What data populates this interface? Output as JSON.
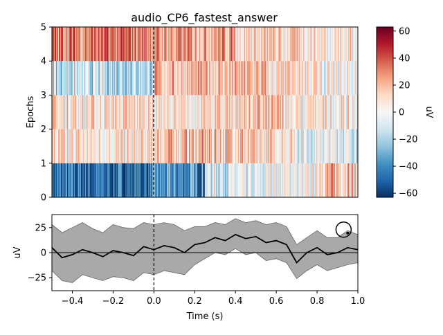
{
  "chart_data": [
    {
      "type": "heatmap",
      "title": "audio_CP6_fastest_answer",
      "xlabel": "",
      "ylabel": "Epochs",
      "xlim": [
        -0.5,
        1.0
      ],
      "ylim": [
        0,
        5
      ],
      "y_ticks": [
        "0",
        "1",
        "2",
        "3",
        "4",
        "5"
      ],
      "colormap": "RdBu_r",
      "colorbar": {
        "label": "uV",
        "range": [
          -63,
          63
        ],
        "ticks": [
          "60",
          "40",
          "20",
          "0",
          "−20",
          "−40",
          "−60"
        ],
        "tick_values": [
          60,
          40,
          20,
          0,
          -20,
          -40,
          -60
        ]
      },
      "onset_marker_x": 0.0,
      "epochs": [
        {
          "row": 1,
          "baseline_mean_uV": -45,
          "segments": [
            {
              "x": [
                -0.5,
                0.0
              ],
              "mean_uV": -48
            },
            {
              "x": [
                0.0,
                0.25
              ],
              "mean_uV": -40
            },
            {
              "x": [
                0.25,
                0.55
              ],
              "mean_uV": -10
            },
            {
              "x": [
                0.55,
                0.8
              ],
              "mean_uV": 0
            },
            {
              "x": [
                0.8,
                1.0
              ],
              "mean_uV": 20
            }
          ]
        },
        {
          "row": 2,
          "baseline_mean_uV": 8,
          "segments": [
            {
              "x": [
                -0.5,
                0.0
              ],
              "mean_uV": 8
            },
            {
              "x": [
                0.0,
                0.45
              ],
              "mean_uV": 18
            },
            {
              "x": [
                0.45,
                0.7
              ],
              "mean_uV": 10
            },
            {
              "x": [
                0.7,
                1.0
              ],
              "mean_uV": -5
            }
          ]
        },
        {
          "row": 3,
          "baseline_mean_uV": 10,
          "segments": [
            {
              "x": [
                -0.5,
                0.0
              ],
              "mean_uV": 10
            },
            {
              "x": [
                0.0,
                0.3
              ],
              "mean_uV": 5
            },
            {
              "x": [
                0.3,
                0.65
              ],
              "mean_uV": 15
            },
            {
              "x": [
                0.65,
                1.0
              ],
              "mean_uV": 5
            }
          ]
        },
        {
          "row": 4,
          "baseline_mean_uV": -15,
          "segments": [
            {
              "x": [
                -0.5,
                0.0
              ],
              "mean_uV": -15
            },
            {
              "x": [
                0.0,
                0.55
              ],
              "mean_uV": 18
            },
            {
              "x": [
                0.55,
                0.8
              ],
              "mean_uV": 8
            },
            {
              "x": [
                0.8,
                1.0
              ],
              "mean_uV": 0
            }
          ]
        },
        {
          "row": 5,
          "baseline_mean_uV": 30,
          "segments": [
            {
              "x": [
                -0.5,
                0.0
              ],
              "mean_uV": 32
            },
            {
              "x": [
                0.0,
                0.4
              ],
              "mean_uV": 25
            },
            {
              "x": [
                0.4,
                0.75
              ],
              "mean_uV": 12
            },
            {
              "x": [
                0.75,
                1.0
              ],
              "mean_uV": 8
            }
          ]
        }
      ]
    },
    {
      "type": "line",
      "title": "",
      "xlabel": "Time (s)",
      "ylabel": "uV",
      "xlim": [
        -0.5,
        1.0
      ],
      "ylim": [
        -38,
        38
      ],
      "x_ticks": [
        "−0.4",
        "−0.2",
        "0.0",
        "0.2",
        "0.4",
        "0.6",
        "0.8",
        "1.0"
      ],
      "x_tick_values": [
        -0.4,
        -0.2,
        0.0,
        0.2,
        0.4,
        0.6,
        0.8,
        1.0
      ],
      "y_ticks": [
        "25",
        "0",
        "−25"
      ],
      "y_tick_values": [
        25,
        0,
        -25
      ],
      "zero_line": true,
      "onset_marker_x": 0.0,
      "series": [
        {
          "line_color": "#000000",
          "band_color": "#a9a9a9",
          "x": [
            -0.5,
            -0.45,
            -0.4,
            -0.35,
            -0.3,
            -0.25,
            -0.2,
            -0.15,
            -0.1,
            -0.05,
            0.0,
            0.05,
            0.1,
            0.15,
            0.2,
            0.25,
            0.3,
            0.35,
            0.4,
            0.45,
            0.5,
            0.55,
            0.6,
            0.65,
            0.7,
            0.75,
            0.8,
            0.85,
            0.9,
            0.95,
            1.0
          ],
          "mean": [
            5,
            -5,
            -2,
            3,
            0,
            -4,
            2,
            0,
            -3,
            6,
            3,
            7,
            5,
            0,
            8,
            10,
            15,
            12,
            18,
            14,
            16,
            10,
            12,
            8,
            -10,
            0,
            5,
            -2,
            0,
            5,
            3
          ],
          "upper": [
            28,
            20,
            25,
            30,
            24,
            20,
            28,
            25,
            24,
            30,
            28,
            30,
            28,
            22,
            26,
            26,
            30,
            28,
            34,
            30,
            32,
            28,
            30,
            26,
            8,
            15,
            22,
            15,
            15,
            22,
            18
          ],
          "lower": [
            -18,
            -28,
            -30,
            -22,
            -25,
            -28,
            -24,
            -25,
            -28,
            -20,
            -22,
            -18,
            -20,
            -22,
            -12,
            -6,
            0,
            -2,
            4,
            -2,
            0,
            -8,
            -6,
            -10,
            -26,
            -18,
            -12,
            -18,
            -15,
            -12,
            -10
          ]
        }
      ],
      "annotation": {
        "type": "circle-marker",
        "x": 0.93,
        "y": 23
      }
    }
  ]
}
